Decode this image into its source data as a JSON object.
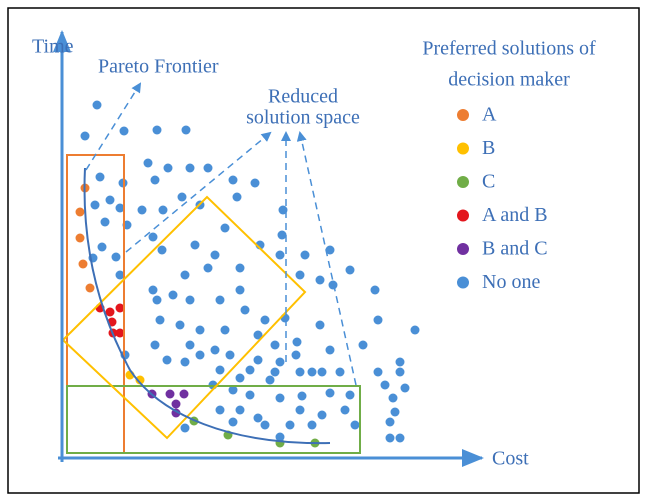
{
  "axes": {
    "y_label": "Time",
    "x_label": "Cost"
  },
  "annotations": {
    "pareto": "Pareto Frontier",
    "reduced": [
      "Reduced",
      "solution space"
    ]
  },
  "legend": {
    "title": [
      "Preferred solutions of",
      "decision maker"
    ],
    "items": [
      {
        "label": "A",
        "color": "#ed7d31"
      },
      {
        "label": "B",
        "color": "#ffc000"
      },
      {
        "label": "C",
        "color": "#70ad47"
      },
      {
        "label": "A and B",
        "color": "#e3161d"
      },
      {
        "label": "B and C",
        "color": "#7030a0"
      },
      {
        "label": "No one",
        "color": "#4a8fd6"
      }
    ]
  }
}
